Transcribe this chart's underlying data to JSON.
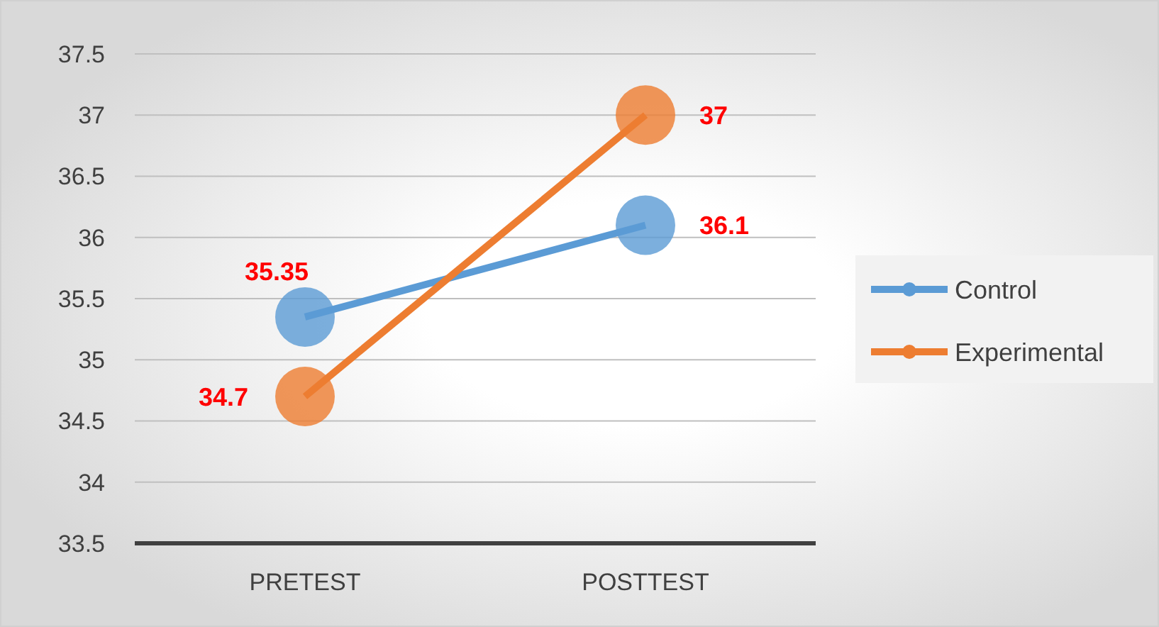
{
  "chart_data": {
    "type": "line",
    "categories": [
      "PRETEST",
      "POSTTEST"
    ],
    "series": [
      {
        "name": "Control",
        "color": "#5b9bd5",
        "values": [
          35.35,
          36.1
        ]
      },
      {
        "name": "Experimental",
        "color": "#ed7d31",
        "values": [
          34.7,
          37
        ]
      }
    ],
    "ylim": [
      33.5,
      37.5
    ],
    "yticks": [
      33.5,
      34,
      34.5,
      35,
      35.5,
      36,
      36.5,
      37,
      37.5
    ],
    "grid": "y",
    "legend": "right",
    "marker": "circle",
    "line_style": "solid",
    "data_labels": true
  }
}
